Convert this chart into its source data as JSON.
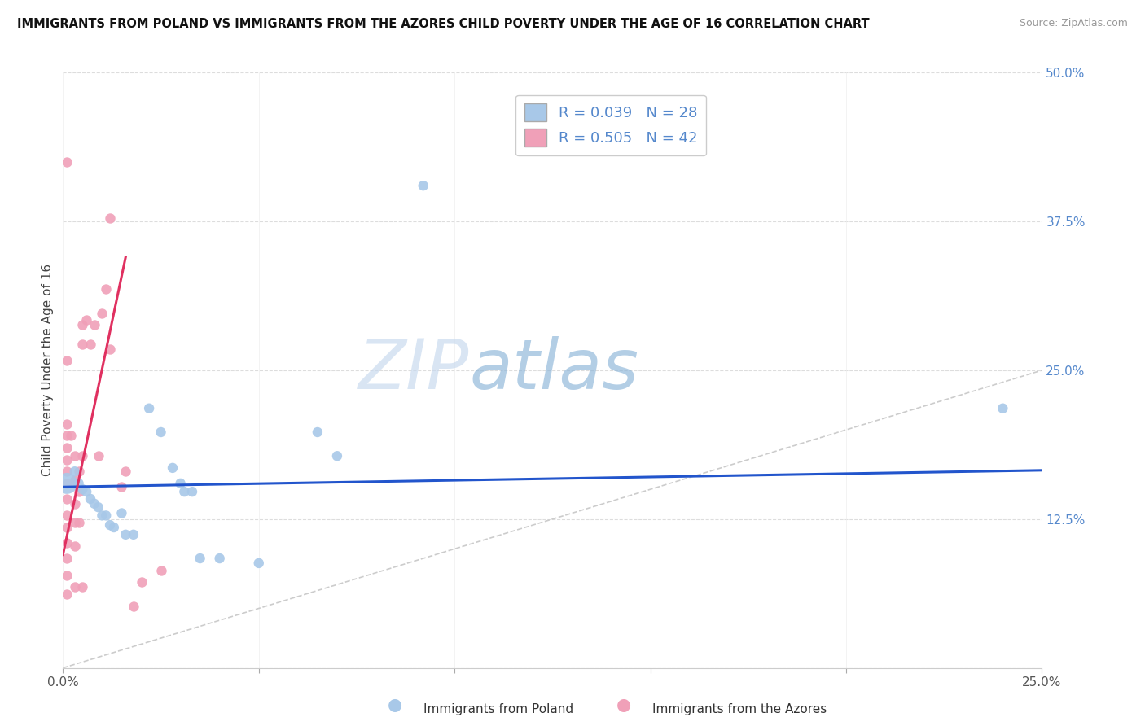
{
  "title": "IMMIGRANTS FROM POLAND VS IMMIGRANTS FROM THE AZORES CHILD POVERTY UNDER THE AGE OF 16 CORRELATION CHART",
  "source": "Source: ZipAtlas.com",
  "ylabel": "Child Poverty Under the Age of 16",
  "xlim": [
    0,
    0.25
  ],
  "ylim": [
    0,
    0.5
  ],
  "xticks": [
    0.0,
    0.05,
    0.1,
    0.15,
    0.2,
    0.25
  ],
  "xticklabels": [
    "0.0%",
    "",
    "",
    "",
    "",
    "25.0%"
  ],
  "yticks_right": [
    0.0,
    0.125,
    0.25,
    0.375,
    0.5
  ],
  "yticklabels_right": [
    "",
    "12.5%",
    "25.0%",
    "37.5%",
    "50.0%"
  ],
  "legend_labels": [
    "Immigrants from Poland",
    "Immigrants from the Azores"
  ],
  "R_poland": 0.039,
  "N_poland": 28,
  "R_azores": 0.505,
  "N_azores": 42,
  "poland_color": "#a8c8e8",
  "azores_color": "#f0a0b8",
  "poland_line_color": "#2255cc",
  "azores_line_color": "#e03060",
  "diagonal_color": "#cccccc",
  "watermark_zip": "ZIP",
  "watermark_atlas": "atlas",
  "poland_line": [
    [
      0.0,
      0.152
    ],
    [
      0.25,
      0.166
    ]
  ],
  "azores_line": [
    [
      0.0,
      0.095
    ],
    [
      0.016,
      0.345
    ]
  ],
  "poland_scatter": [
    [
      0.001,
      0.155
    ],
    [
      0.003,
      0.165
    ],
    [
      0.004,
      0.155
    ],
    [
      0.005,
      0.15
    ],
    [
      0.006,
      0.148
    ],
    [
      0.007,
      0.142
    ],
    [
      0.008,
      0.138
    ],
    [
      0.009,
      0.135
    ],
    [
      0.01,
      0.128
    ],
    [
      0.011,
      0.128
    ],
    [
      0.012,
      0.12
    ],
    [
      0.013,
      0.118
    ],
    [
      0.015,
      0.13
    ],
    [
      0.016,
      0.112
    ],
    [
      0.018,
      0.112
    ],
    [
      0.022,
      0.218
    ],
    [
      0.025,
      0.198
    ],
    [
      0.028,
      0.168
    ],
    [
      0.03,
      0.155
    ],
    [
      0.031,
      0.148
    ],
    [
      0.033,
      0.148
    ],
    [
      0.035,
      0.092
    ],
    [
      0.04,
      0.092
    ],
    [
      0.05,
      0.088
    ],
    [
      0.065,
      0.198
    ],
    [
      0.07,
      0.178
    ],
    [
      0.092,
      0.405
    ],
    [
      0.24,
      0.218
    ]
  ],
  "poland_sizes": [
    350,
    80,
    80,
    80,
    80,
    80,
    80,
    80,
    80,
    80,
    80,
    80,
    80,
    80,
    80,
    80,
    80,
    80,
    80,
    80,
    80,
    80,
    80,
    80,
    80,
    80,
    80,
    80
  ],
  "azores_scatter": [
    [
      0.001,
      0.258
    ],
    [
      0.001,
      0.205
    ],
    [
      0.001,
      0.195
    ],
    [
      0.001,
      0.185
    ],
    [
      0.001,
      0.175
    ],
    [
      0.001,
      0.165
    ],
    [
      0.001,
      0.155
    ],
    [
      0.001,
      0.142
    ],
    [
      0.001,
      0.128
    ],
    [
      0.001,
      0.118
    ],
    [
      0.001,
      0.105
    ],
    [
      0.001,
      0.092
    ],
    [
      0.001,
      0.078
    ],
    [
      0.001,
      0.062
    ],
    [
      0.001,
      0.425
    ],
    [
      0.002,
      0.195
    ],
    [
      0.003,
      0.178
    ],
    [
      0.003,
      0.158
    ],
    [
      0.003,
      0.138
    ],
    [
      0.003,
      0.122
    ],
    [
      0.003,
      0.102
    ],
    [
      0.003,
      0.068
    ],
    [
      0.004,
      0.165
    ],
    [
      0.004,
      0.148
    ],
    [
      0.004,
      0.122
    ],
    [
      0.005,
      0.288
    ],
    [
      0.005,
      0.272
    ],
    [
      0.005,
      0.178
    ],
    [
      0.005,
      0.068
    ],
    [
      0.006,
      0.292
    ],
    [
      0.007,
      0.272
    ],
    [
      0.008,
      0.288
    ],
    [
      0.009,
      0.178
    ],
    [
      0.01,
      0.298
    ],
    [
      0.011,
      0.318
    ],
    [
      0.012,
      0.268
    ],
    [
      0.012,
      0.378
    ],
    [
      0.015,
      0.152
    ],
    [
      0.016,
      0.165
    ],
    [
      0.018,
      0.052
    ],
    [
      0.02,
      0.072
    ],
    [
      0.025,
      0.082
    ]
  ],
  "background_color": "#ffffff",
  "grid_color": "#dddddd"
}
